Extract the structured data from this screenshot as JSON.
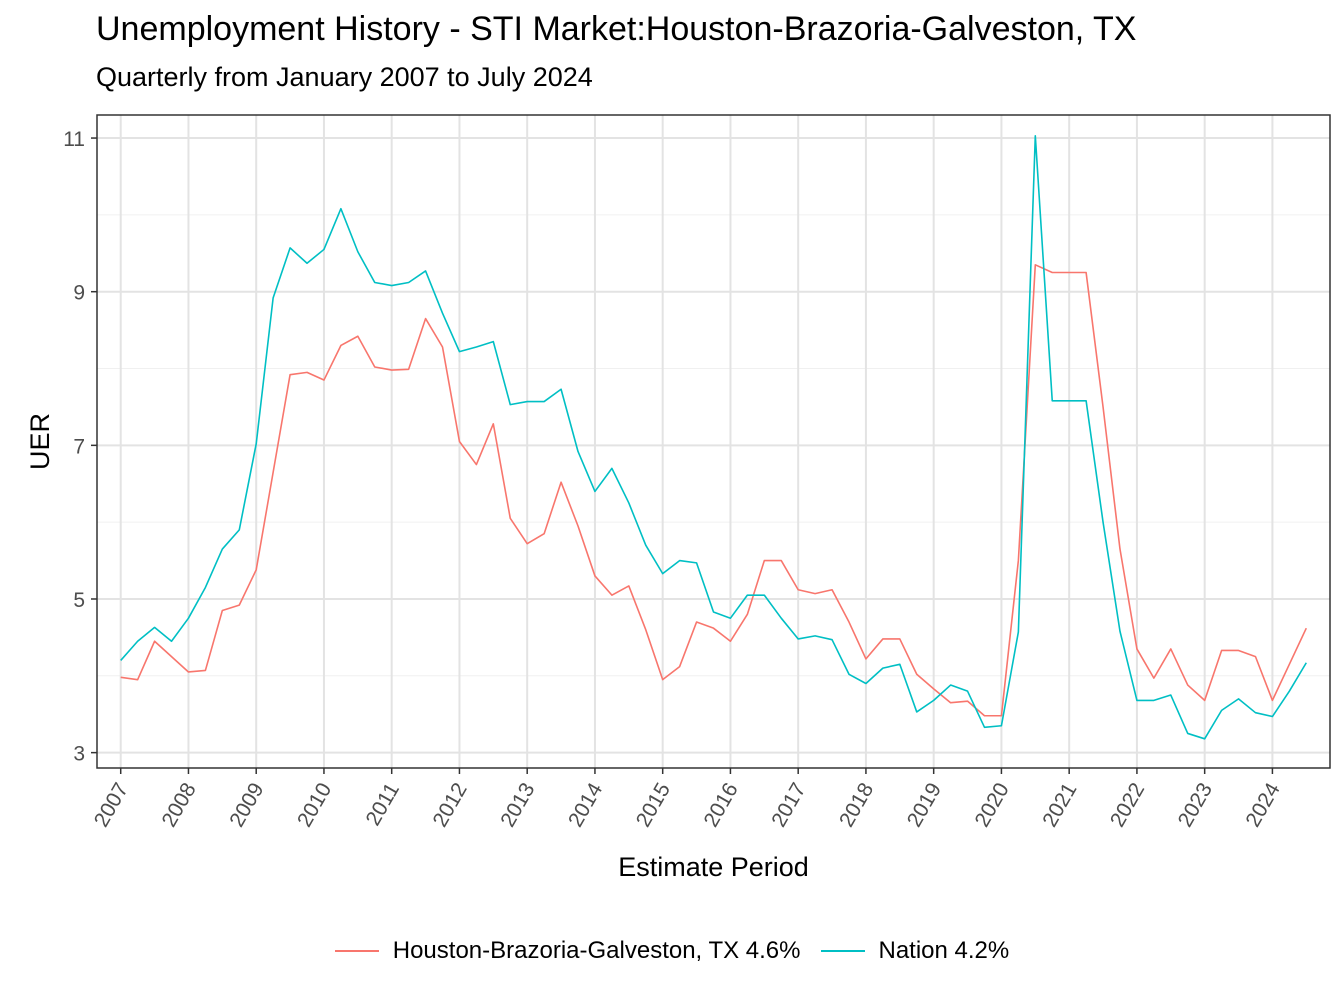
{
  "title": "Unemployment History - STI Market:Houston-Brazoria-Galveston, TX",
  "subtitle": "Quarterly from January 2007 to July 2024",
  "chart_data": {
    "type": "line",
    "title": "Unemployment History - STI Market:Houston-Brazoria-Galveston, TX",
    "subtitle": "Quarterly from January 2007 to July 2024",
    "xlabel": "Estimate Period",
    "ylabel": "UER",
    "x_start": "2007-01",
    "x_step": "quarter",
    "xlim": [
      "2007-01",
      "2024-07"
    ],
    "ylim": [
      2.8,
      11.3
    ],
    "x_ticks": [
      "2007",
      "2008",
      "2009",
      "2010",
      "2011",
      "2012",
      "2013",
      "2014",
      "2015",
      "2016",
      "2017",
      "2018",
      "2019",
      "2020",
      "2021",
      "2022",
      "2023",
      "2024"
    ],
    "y_ticks": [
      3,
      5,
      7,
      9,
      11
    ],
    "grid": true,
    "legend_position": "bottom",
    "series": [
      {
        "name": "Houston-Brazoria-Galveston, TX 4.6%",
        "color": "#F8766D",
        "values": [
          3.98,
          3.95,
          4.45,
          4.25,
          4.05,
          4.07,
          4.85,
          4.92,
          5.38,
          6.65,
          7.92,
          7.95,
          7.85,
          8.3,
          8.42,
          8.02,
          7.98,
          7.99,
          8.65,
          8.28,
          7.05,
          6.75,
          7.28,
          6.05,
          5.72,
          5.85,
          6.52,
          5.95,
          5.3,
          5.05,
          5.17,
          4.6,
          3.95,
          4.12,
          4.7,
          4.62,
          4.45,
          4.8,
          5.5,
          5.5,
          5.12,
          5.07,
          5.12,
          4.7,
          4.22,
          4.48,
          4.48,
          4.02,
          3.83,
          3.65,
          3.67,
          3.48,
          3.48,
          5.5,
          9.35,
          9.25,
          9.25,
          9.25,
          7.5,
          5.65,
          4.35,
          3.97,
          4.35,
          3.88,
          3.68,
          4.33,
          4.33,
          4.25,
          3.68,
          4.15,
          4.62
        ]
      },
      {
        "name": "Nation 4.2%",
        "color": "#00BFC4",
        "values": [
          4.2,
          4.45,
          4.63,
          4.45,
          4.75,
          5.15,
          5.65,
          5.9,
          7.02,
          8.92,
          9.57,
          9.37,
          9.55,
          10.08,
          9.52,
          9.12,
          9.08,
          9.12,
          9.27,
          8.72,
          8.22,
          8.28,
          8.35,
          7.53,
          7.57,
          7.57,
          7.73,
          6.92,
          6.4,
          6.7,
          6.25,
          5.7,
          5.33,
          5.5,
          5.47,
          4.83,
          4.75,
          5.05,
          5.05,
          4.75,
          4.48,
          4.52,
          4.47,
          4.02,
          3.9,
          4.1,
          4.15,
          3.53,
          3.68,
          3.88,
          3.8,
          3.33,
          3.35,
          4.57,
          11.03,
          7.58,
          7.58,
          7.58,
          6.0,
          4.58,
          3.68,
          3.68,
          3.75,
          3.25,
          3.18,
          3.55,
          3.7,
          3.52,
          3.47,
          3.8,
          4.17
        ]
      }
    ]
  }
}
